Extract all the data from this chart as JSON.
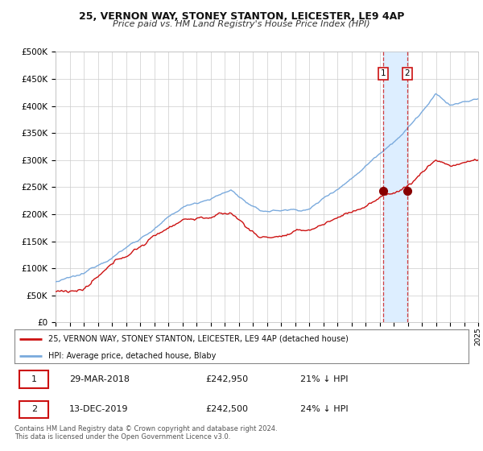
{
  "title": "25, VERNON WAY, STONEY STANTON, LEICESTER, LE9 4AP",
  "subtitle": "Price paid vs. HM Land Registry's House Price Index (HPI)",
  "legend_line1": "25, VERNON WAY, STONEY STANTON, LEICESTER, LE9 4AP (detached house)",
  "legend_line2": "HPI: Average price, detached house, Blaby",
  "annotation1": {
    "label": "1",
    "date_str": "29-MAR-2018",
    "price_str": "£242,950",
    "pct_str": "21% ↓ HPI"
  },
  "annotation2": {
    "label": "2",
    "date_str": "13-DEC-2019",
    "price_str": "£242,500",
    "pct_str": "24% ↓ HPI"
  },
  "point1_year": 2018.24,
  "point1_value": 242950,
  "point2_year": 2019.95,
  "point2_value": 242500,
  "copyright_text": "Contains HM Land Registry data © Crown copyright and database right 2024.\nThis data is licensed under the Open Government Licence v3.0.",
  "hpi_color": "#7aaadd",
  "price_color": "#cc1111",
  "marker_color": "#880000",
  "vline_color": "#cc1111",
  "highlight_color": "#ddeeff",
  "grid_color": "#cccccc",
  "bg_color": "#ffffff",
  "ylim": [
    0,
    500000
  ],
  "xlim_start": 1995,
  "xlim_end": 2025,
  "yticks": [
    0,
    50000,
    100000,
    150000,
    200000,
    250000,
    300000,
    350000,
    400000,
    450000,
    500000
  ]
}
